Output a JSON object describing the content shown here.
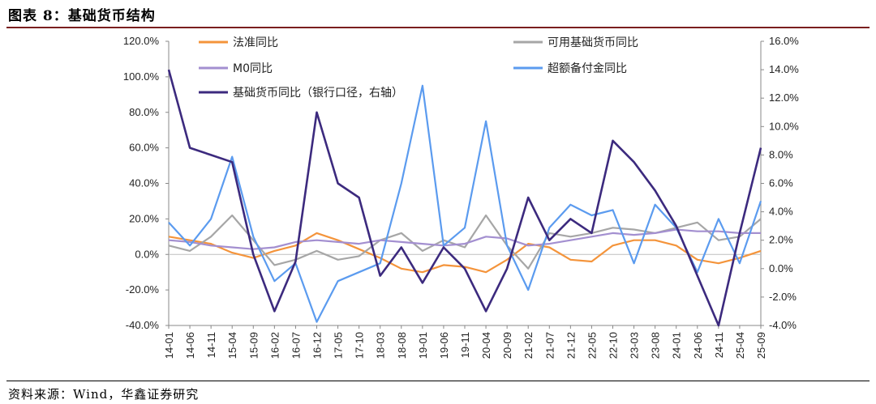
{
  "header": {
    "title": "图表 8：基础货币结构"
  },
  "footer": {
    "source": "资料来源：Wind，华鑫证券研究"
  },
  "chart_data": {
    "type": "line",
    "x": [
      "14-01",
      "14-06",
      "14-11",
      "15-04",
      "15-09",
      "16-02",
      "16-07",
      "16-12",
      "17-05",
      "17-10",
      "18-03",
      "18-08",
      "19-01",
      "19-06",
      "19-11",
      "20-04",
      "20-09",
      "21-02",
      "21-07",
      "21-12",
      "22-05",
      "22-10",
      "23-03",
      "23-08",
      "24-01",
      "24-06",
      "24-11",
      "25-04",
      "25-09"
    ],
    "left_axis": {
      "ylim": [
        -40,
        120
      ],
      "ticks": [
        "-40.0%",
        "-20.0%",
        "0.0%",
        "20.0%",
        "40.0%",
        "60.0%",
        "80.0%",
        "100.0%",
        "120.0%"
      ]
    },
    "right_axis": {
      "ylim": [
        -4,
        16
      ],
      "ticks": [
        "-4.0%",
        "-2.0%",
        "0.0%",
        "2.0%",
        "4.0%",
        "6.0%",
        "8.0%",
        "10.0%",
        "12.0%",
        "14.0%",
        "16.0%"
      ]
    },
    "series": [
      {
        "name": "法准同比",
        "axis": "left",
        "color": "#f4943b",
        "values": [
          10,
          8,
          6,
          1,
          -2,
          2,
          5,
          12,
          8,
          3,
          -2,
          -8,
          -10,
          -6,
          -7,
          -10,
          -3,
          6,
          4,
          -3,
          -4,
          5,
          8,
          8,
          5,
          -3,
          -5,
          -2,
          2
        ]
      },
      {
        "name": "可用基础货币同比",
        "axis": "left",
        "color": "#a6a6a6",
        "values": [
          5,
          2,
          10,
          22,
          8,
          -6,
          -3,
          2,
          -3,
          -1,
          8,
          12,
          2,
          8,
          4,
          22,
          5,
          -8,
          12,
          10,
          12,
          15,
          14,
          12,
          15,
          18,
          8,
          10,
          20
        ]
      },
      {
        "name": "M0同比",
        "axis": "left",
        "color": "#a38fd0",
        "values": [
          8,
          7,
          5,
          4,
          3,
          4,
          7,
          8,
          7,
          6,
          8,
          7,
          6,
          5,
          6,
          10,
          9,
          5,
          6,
          8,
          10,
          12,
          11,
          12,
          14,
          13,
          13,
          12,
          12
        ]
      },
      {
        "name": "超额备付金同比",
        "axis": "left",
        "color": "#5b9bef",
        "values": [
          18,
          5,
          20,
          55,
          10,
          -15,
          -5,
          -38,
          -15,
          -10,
          -5,
          40,
          95,
          5,
          15,
          75,
          5,
          -20,
          15,
          28,
          22,
          25,
          -5,
          28,
          15,
          -10,
          20,
          -5,
          30
        ]
      },
      {
        "name": "基础货币同比（银行口径，右轴）",
        "axis": "right",
        "color": "#3c2a7e",
        "values": [
          14,
          8.5,
          8,
          7.5,
          1,
          -3,
          0.5,
          11,
          6,
          5,
          -0.5,
          1.5,
          -1,
          1.5,
          0,
          -3,
          0,
          5,
          2,
          3.5,
          2.5,
          9,
          7.5,
          5.5,
          3,
          -0.5,
          -4,
          2.5,
          8.5
        ]
      }
    ],
    "legend_placement": "top",
    "grid": false
  }
}
